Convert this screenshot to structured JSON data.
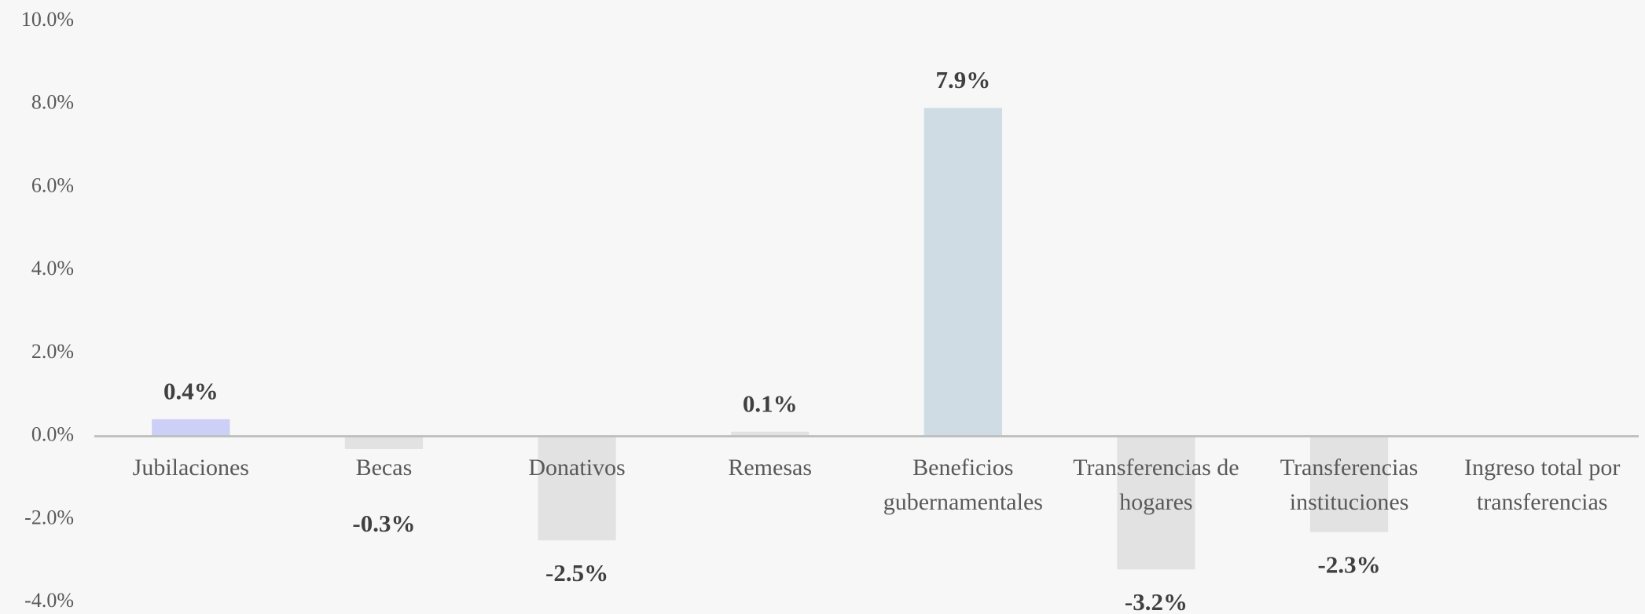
{
  "chart_data": {
    "type": "bar",
    "categories": [
      "Jubilaciones",
      "Becas",
      "Donativos",
      "Remesas",
      "Beneficios gubernamentales",
      "Transferencias de hogares",
      "Transferencias instituciones",
      "Ingreso total por transferencias"
    ],
    "values": [
      0.4,
      -0.3,
      -2.5,
      0.1,
      7.9,
      -3.2,
      -2.3,
      null
    ],
    "value_labels": [
      "0.4%",
      "-0.3%",
      "-2.5%",
      "0.1%",
      "7.9%",
      "-3.2%",
      "-2.3%",
      null
    ],
    "colors": [
      "#cdd0f6",
      "#e2e2e2",
      "#e2e2e2",
      "#e2e2e2",
      "#cfdce4",
      "#e2e2e2",
      "#e2e2e2",
      "#e2e2e2"
    ],
    "ylim": [
      -4,
      10
    ],
    "yticks": [
      {
        "value": -4,
        "label": "-4.0%"
      },
      {
        "value": -2,
        "label": "-2.0%"
      },
      {
        "value": 0,
        "label": "0.0%"
      },
      {
        "value": 2,
        "label": "2.0%"
      },
      {
        "value": 4,
        "label": "4.0%"
      },
      {
        "value": 6,
        "label": "6.0%"
      },
      {
        "value": 8,
        "label": "8.0%"
      },
      {
        "value": 10,
        "label": "10.0%"
      }
    ],
    "grid": false
  }
}
